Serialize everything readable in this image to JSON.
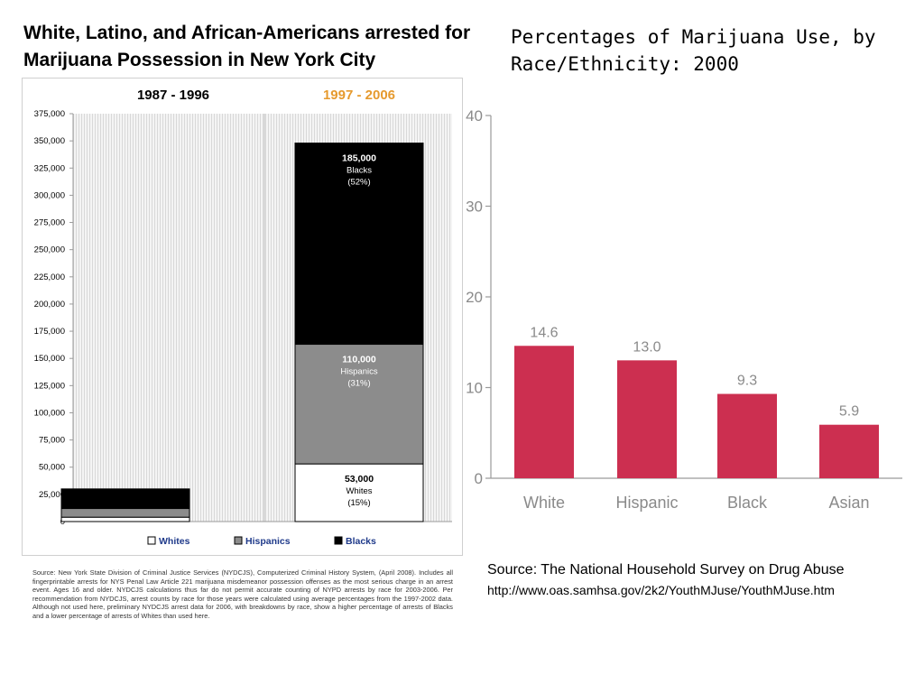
{
  "left_title": "White, Latino, and African-Americans arrested for Marijuana Possession in New York City",
  "right_title": "Percentages of Marijuana Use, by Race/Ethnicity: 2000",
  "left_source": "Source: New York State Division of Criminal Justice Services (NYDCJS), Computerized Criminal History System, (April 2008). Includes all fingerprintable arrests for NYS Penal Law Article 221 marijuana misdemeanor possession offenses as the most serious charge in an arrest event. Ages 16 and older. NYDCJS calculations thus far do not permit accurate counting of NYPD arrests by race for 2003-2006. Per recommendation from NYDCJS, arrest counts by race for those years were calculated using average percentages from the 1997-2002 data. Although not used here, preliminary NYDCJS arrest data for 2006, with breakdowns by race, show a higher percentage of arrests of Blacks and a lower percentage of arrests of Whites than used here.",
  "right_source": "Source: The National Household Survey on Drug Abuse",
  "right_source_url": "http://www.oas.samhsa.gov/2k2/YouthMJuse/YouthMJuse.htm",
  "colors": {
    "whites": "#ffffff",
    "hispanics": "#8c8c8c",
    "blacks": "#000000",
    "period2": "#e69a2e",
    "bar_red": "#cc2f50",
    "axis_gray": "#9a9a9a"
  },
  "chart_data": [
    {
      "type": "bar",
      "stacked": true,
      "categories": [
        "1987 - 1996",
        "1997 - 2006"
      ],
      "series": [
        {
          "name": "Whites",
          "values": [
            4000,
            53000
          ]
        },
        {
          "name": "Hispanics",
          "values": [
            8000,
            110000
          ]
        },
        {
          "name": "Blacks",
          "values": [
            18000,
            185000
          ]
        }
      ],
      "annotations": [
        {
          "category": "1997 - 2006",
          "series": "Blacks",
          "lines": [
            "185,000",
            "Blacks",
            "(52%)"
          ]
        },
        {
          "category": "1997 - 2006",
          "series": "Hispanics",
          "lines": [
            "110,000",
            "Hispanics",
            "(31%)"
          ]
        },
        {
          "category": "1997 - 2006",
          "series": "Whites",
          "lines": [
            "53,000",
            "Whites",
            "(15%)"
          ]
        }
      ],
      "ylim": [
        0,
        375000
      ],
      "yticks": [
        0,
        25000,
        50000,
        75000,
        100000,
        125000,
        150000,
        175000,
        200000,
        225000,
        250000,
        275000,
        300000,
        325000,
        350000,
        375000
      ],
      "ytick_labels": [
        "0",
        "25,000",
        "50,000",
        "75,000",
        "100,000",
        "125,000",
        "150,000",
        "175,000",
        "200,000",
        "225,000",
        "250,000",
        "275,000",
        "300,000",
        "325,000",
        "350,000",
        "375,000"
      ],
      "legend": [
        "Whites",
        "Hispanics",
        "Blacks"
      ],
      "legend_position": "bottom",
      "grid": false
    },
    {
      "type": "bar",
      "categories": [
        "White",
        "Hispanic",
        "Black",
        "Asian"
      ],
      "values": [
        14.6,
        13.0,
        9.3,
        5.9
      ],
      "value_labels": [
        "14.6",
        "13.0",
        "9.3",
        "5.9"
      ],
      "ylim": [
        0,
        40
      ],
      "yticks": [
        0,
        10,
        20,
        30,
        40
      ],
      "ytick_labels": [
        "0",
        "10",
        "20",
        "30",
        "40"
      ],
      "grid": false
    }
  ]
}
